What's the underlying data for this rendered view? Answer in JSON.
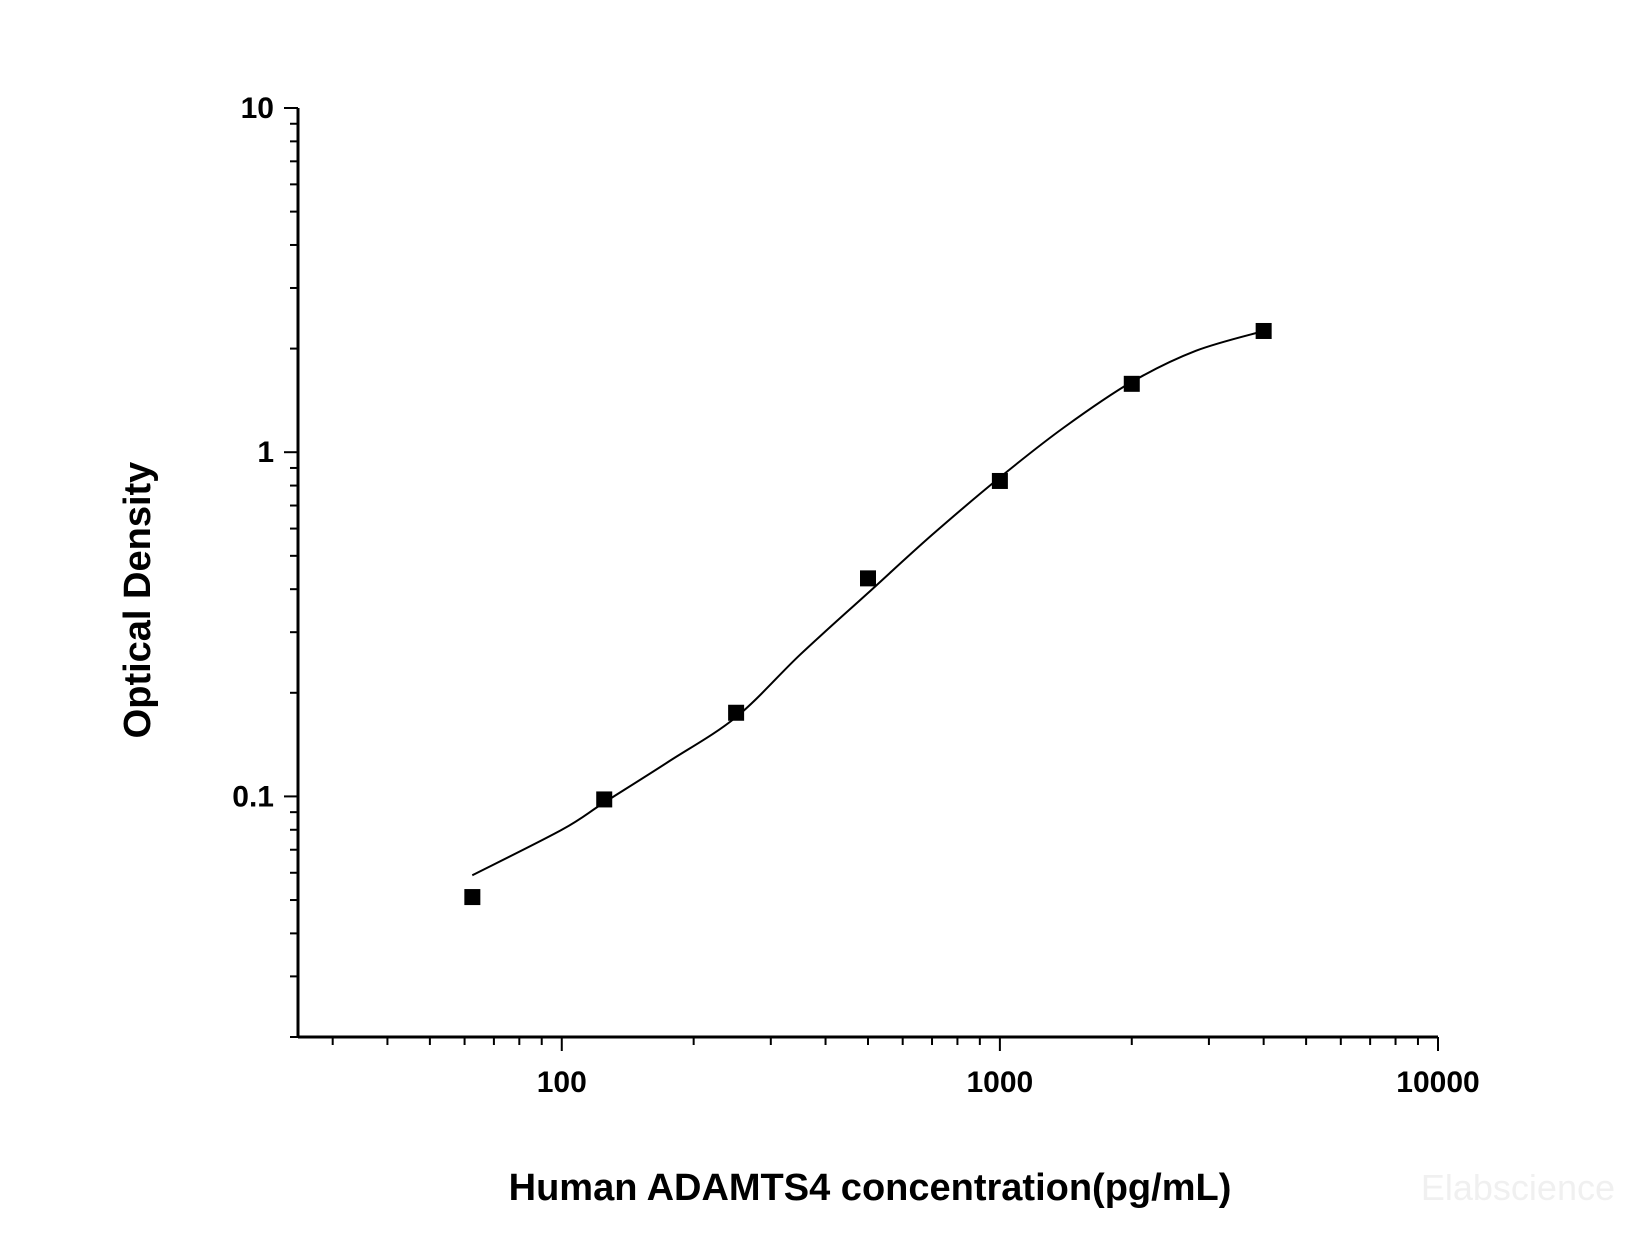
{
  "chart_data": {
    "type": "scatter",
    "xlabel": "Human ADAMTS4 concentration(pg/mL)",
    "ylabel": "Optical Density",
    "x_scale": "log",
    "y_scale": "log",
    "xlim": [
      25,
      10000
    ],
    "ylim": [
      0.02,
      10
    ],
    "x_ticks": [
      "100",
      "1000",
      "10000"
    ],
    "y_ticks": [
      "10",
      "1",
      "0.1"
    ],
    "grid": false,
    "legend": "none",
    "marker": "square",
    "color": "#000000",
    "series": [
      {
        "x": [
          62.5,
          125,
          250,
          500,
          1000,
          2000,
          4000
        ],
        "y": [
          0.051,
          0.098,
          0.175,
          0.43,
          0.825,
          1.58,
          2.25
        ]
      }
    ],
    "fit_curve": {
      "x": [
        62.5,
        100,
        125,
        175,
        250,
        350,
        500,
        700,
        1000,
        1400,
        2000,
        2800,
        4000
      ],
      "y": [
        0.059,
        0.08,
        0.096,
        0.126,
        0.17,
        0.258,
        0.39,
        0.575,
        0.845,
        1.18,
        1.6,
        1.97,
        2.25
      ]
    },
    "watermark": "Elabscience"
  }
}
